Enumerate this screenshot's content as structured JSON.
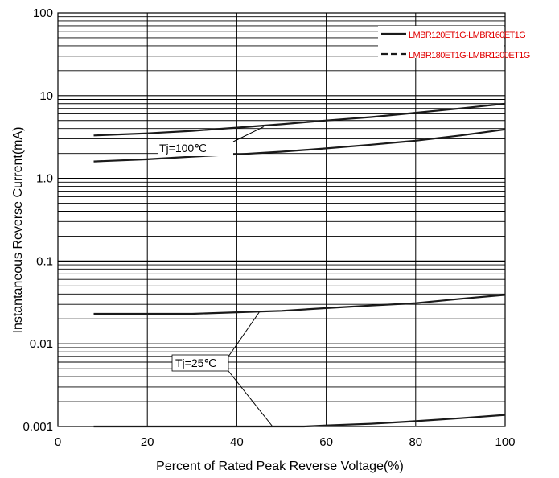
{
  "chart_data": {
    "type": "line",
    "title": "",
    "xlabel": "Percent of Rated Peak Reverse Voltage(%)",
    "ylabel": "Instantaneous Reverse Current(mA)",
    "xlim": [
      0,
      100
    ],
    "ylim": [
      0.001,
      100
    ],
    "yscale": "log",
    "grid": true,
    "legend_position": "top-right",
    "x_ticks": [
      "0",
      "20",
      "40",
      "60",
      "80",
      "100"
    ],
    "y_ticks": [
      "0.001",
      "0.01",
      "0.1",
      "1.0",
      "10",
      "100"
    ],
    "line_color": "#1a1a1a",
    "legend_text_color": "#e00000",
    "legend": [
      {
        "name": "LMBR120ET1G-LMBR160ET1G",
        "style": "solid"
      },
      {
        "name": "LMBR180ET1G-LMBR1200ET1G",
        "style": "dashed"
      }
    ],
    "series": [
      {
        "x": [
          8,
          20,
          30,
          40,
          50,
          60,
          70,
          80,
          90,
          100
        ],
        "values": [
          3.3,
          3.5,
          3.75,
          4.1,
          4.5,
          5.0,
          5.5,
          6.2,
          7.0,
          8.0
        ]
      },
      {
        "x": [
          8,
          20,
          30,
          40,
          50,
          60,
          70,
          80,
          90,
          100
        ],
        "values": [
          1.6,
          1.7,
          1.83,
          1.95,
          2.1,
          2.3,
          2.55,
          2.85,
          3.3,
          3.9
        ]
      },
      {
        "x": [
          8,
          20,
          30,
          40,
          50,
          60,
          70,
          80,
          90,
          100
        ],
        "values": [
          0.023,
          0.023,
          0.023,
          0.024,
          0.025,
          0.027,
          0.029,
          0.031,
          0.035,
          0.039
        ]
      },
      {
        "x": [
          8,
          20,
          30,
          40,
          50,
          55,
          60,
          70,
          80,
          90,
          100
        ],
        "values": [
          0.001,
          0.001,
          0.001,
          0.001,
          0.001,
          0.001,
          0.00103,
          0.00108,
          0.00116,
          0.00126,
          0.00138
        ]
      }
    ],
    "annotations": [
      {
        "text": "Tj=100℃",
        "points_to": [
          [
            46,
            4.2
          ]
        ]
      },
      {
        "text": "Tj=25℃",
        "points_to": [
          [
            45,
            0.024
          ],
          [
            48,
            0.001
          ]
        ]
      }
    ]
  }
}
